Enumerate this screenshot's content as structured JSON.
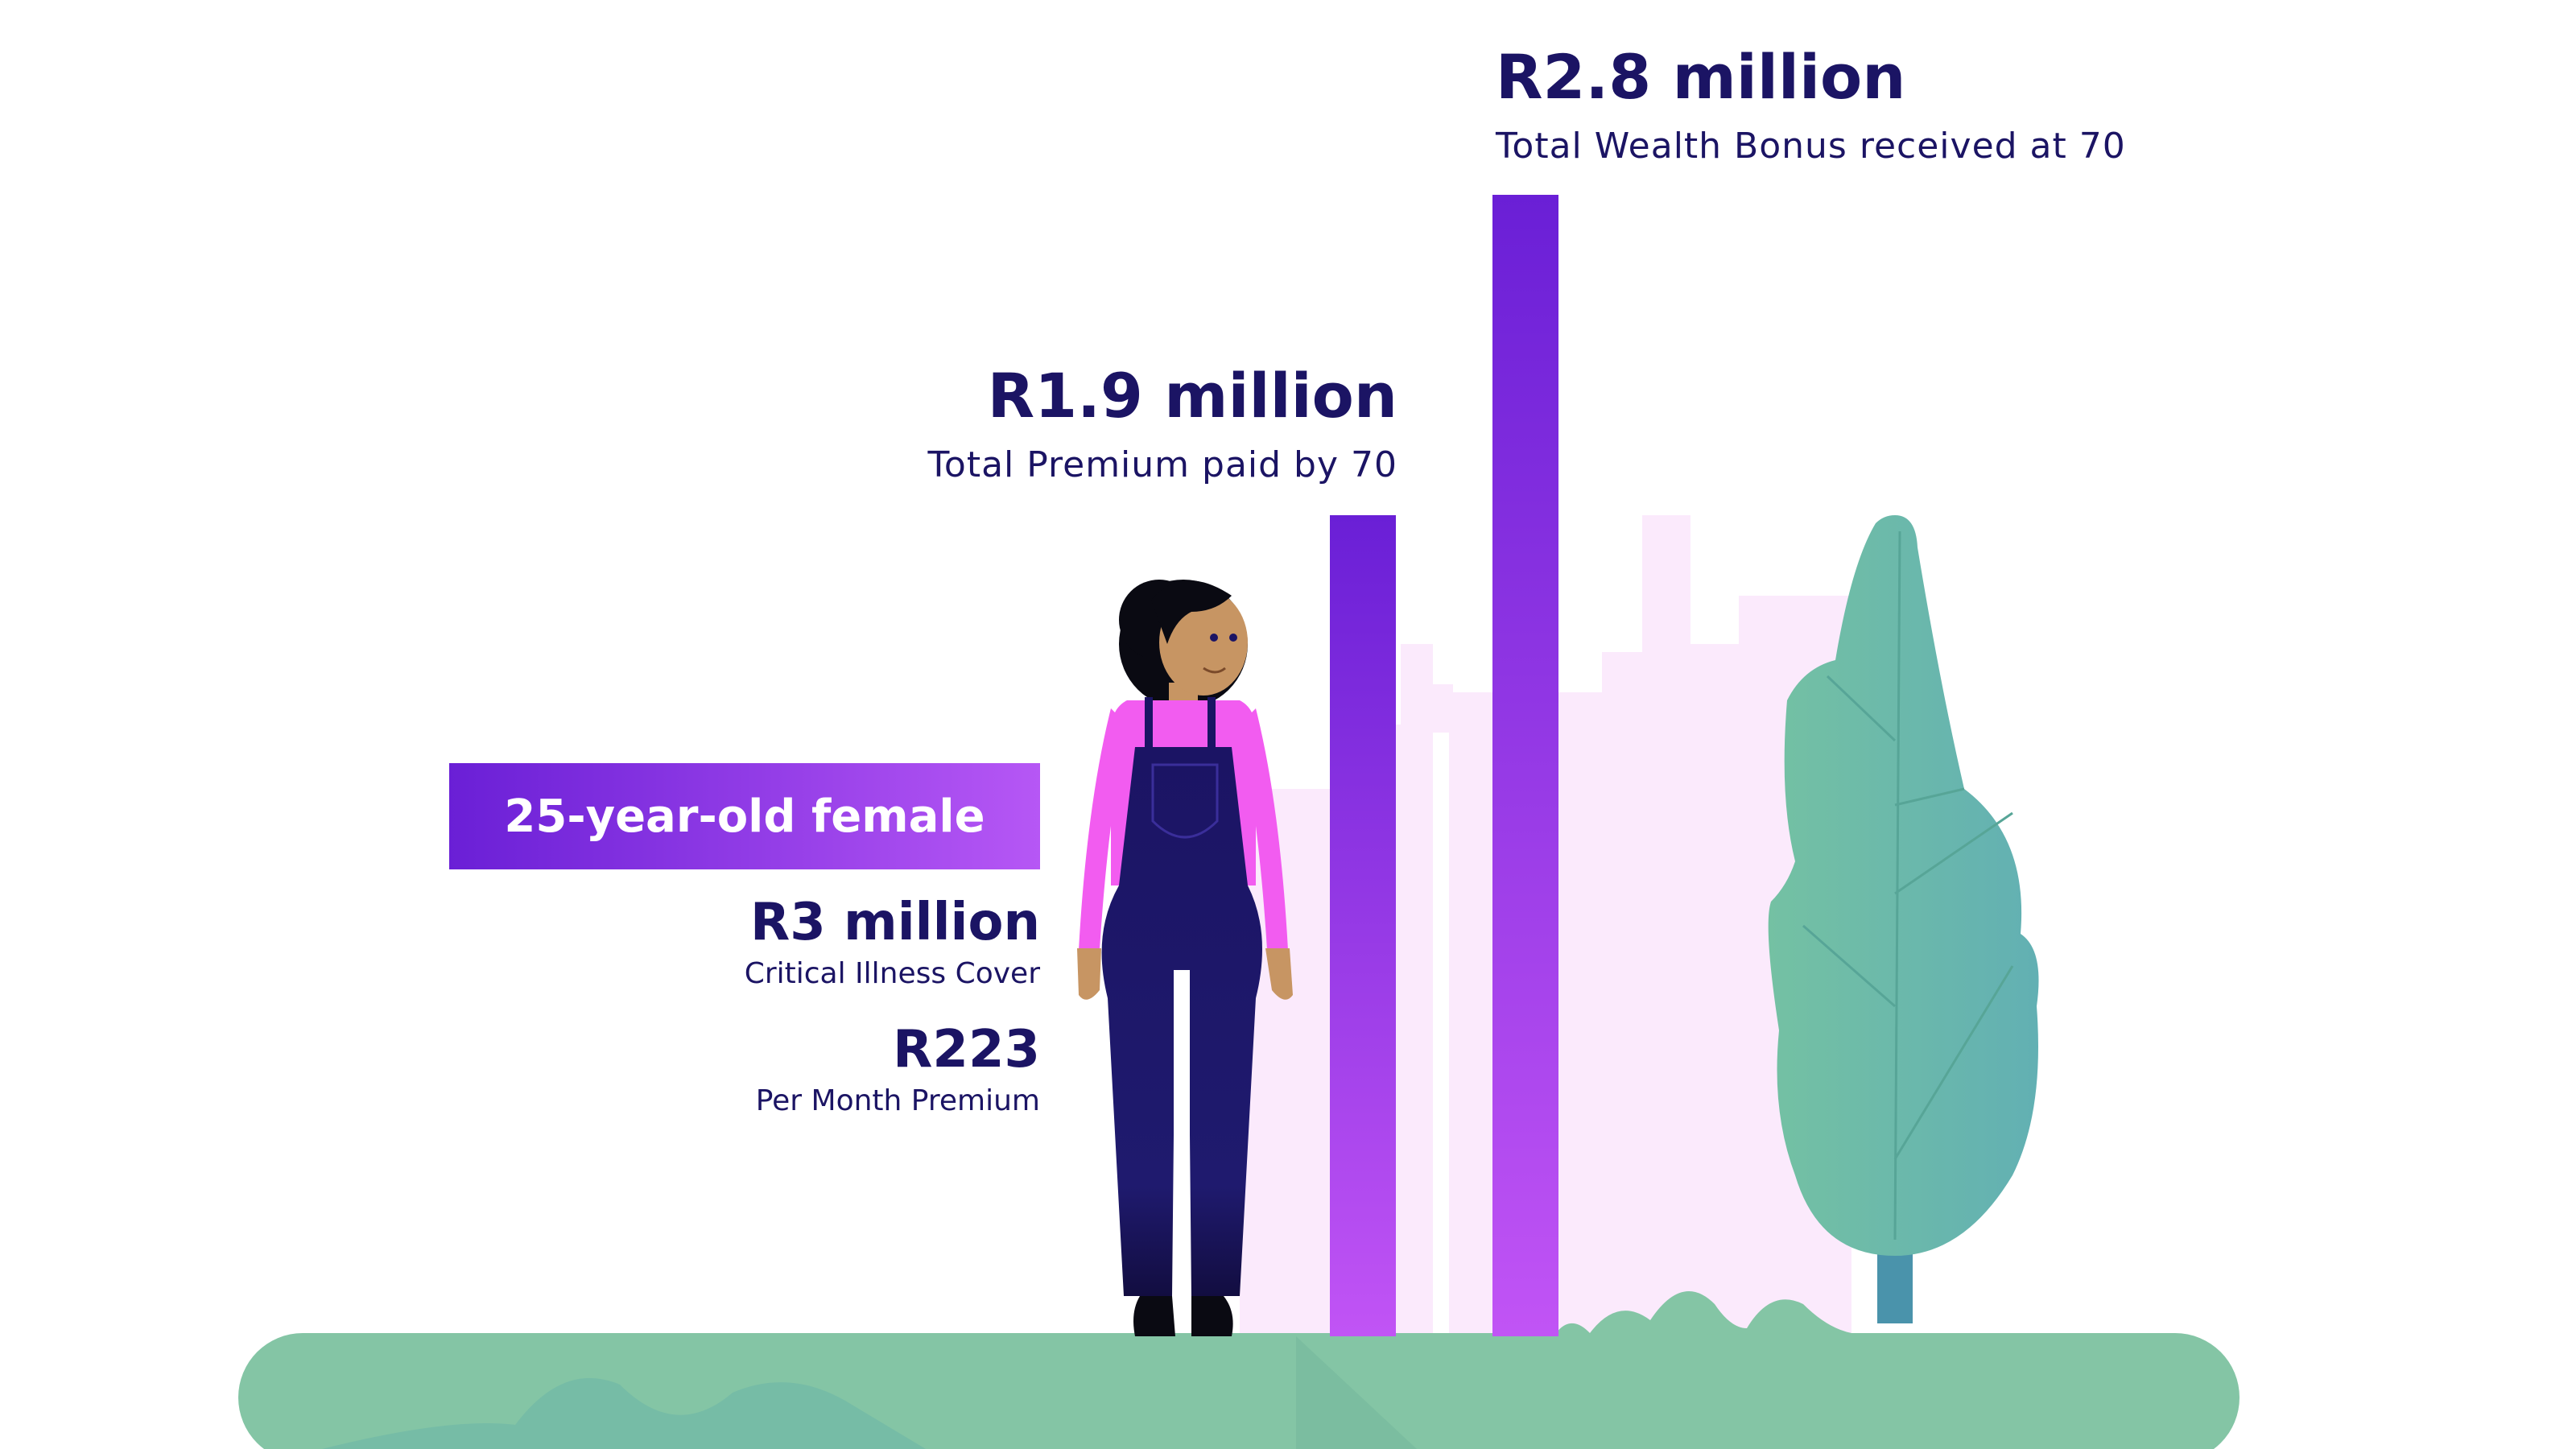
{
  "colors": {
    "navy": "#1b1464",
    "bar_purple_top": "#6a1fd6",
    "bar_purple_bottom": "#c154f5",
    "ground_green": "#84c5a5",
    "tree_teal": "#66b4b0",
    "city_pink": "#fbeafc",
    "shirt_pink": "#f25cf0"
  },
  "bars": {
    "premium": {
      "value_label": "R1.9 million",
      "caption": "Total Premium paid by 70",
      "value_millions": 1.9
    },
    "bonus": {
      "value_label": "R2.8 million",
      "caption": "Total Wealth Bonus received at 70",
      "value_millions": 2.8
    }
  },
  "profile": {
    "banner": "25-year-old female",
    "cover_value": "R3 million",
    "cover_label": "Critical Illness Cover",
    "premium_value": "R223",
    "premium_label": "Per Month Premium"
  },
  "icons": {
    "person": "woman-in-overalls-illustration",
    "tree": "tree-illustration",
    "city": "city-skyline-illustration",
    "ground": "ground-hill-illustration"
  }
}
